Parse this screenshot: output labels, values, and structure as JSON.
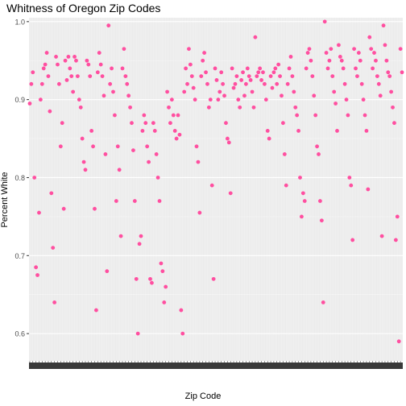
{
  "chart_data": {
    "type": "scatter",
    "title": "Whitness of Oregon Zip Codes",
    "xlabel": "Zip Code",
    "ylabel": "Percent White",
    "ylim": [
      0.565,
      1.005
    ],
    "yticks": [
      "0.6",
      "0.7",
      "0.8",
      "0.9",
      "1.0"
    ],
    "ytick_values": [
      0.6,
      0.7,
      0.8,
      0.9,
      1.0
    ],
    "x_type": "categorical (unreadable, overplotted zip code labels)",
    "grid": true,
    "colors": {
      "point": "#FF4FA0",
      "panel": "#EBEBEB",
      "grid": "#FFFFFF",
      "axis_text": "#4D4D4D"
    },
    "series": [
      {
        "values": [
          0.895,
          0.92,
          0.935,
          0.8,
          0.685,
          0.675,
          0.755,
          0.9,
          0.92,
          0.94,
          0.945,
          0.96,
          0.93,
          0.885,
          0.78,
          0.71,
          0.64,
          0.955,
          0.945,
          0.92,
          0.84,
          0.87,
          0.76,
          0.95,
          0.925,
          0.955,
          0.94,
          0.93,
          0.91,
          0.955,
          0.95,
          0.93,
          0.9,
          0.89,
          0.85,
          0.82,
          0.81,
          0.95,
          0.945,
          0.93,
          0.86,
          0.84,
          0.76,
          0.63,
          0.935,
          0.96,
          0.945,
          0.93,
          0.905,
          0.83,
          0.68,
          0.995,
          0.92,
          0.94,
          0.91,
          0.88,
          0.77,
          0.84,
          0.81,
          0.725,
          0.94,
          0.965,
          0.93,
          0.92,
          0.905,
          0.89,
          0.87,
          0.835,
          0.77,
          0.67,
          0.6,
          0.715,
          0.725,
          0.86,
          0.88,
          0.87,
          0.84,
          0.82,
          0.67,
          0.665,
          0.87,
          0.86,
          0.83,
          0.8,
          0.77,
          0.69,
          0.68,
          0.64,
          0.66,
          0.91,
          0.89,
          0.87,
          0.9,
          0.88,
          0.86,
          0.85,
          0.88,
          0.855,
          0.63,
          0.6,
          0.91,
          0.94,
          0.92,
          0.965,
          0.945,
          0.93,
          0.915,
          0.9,
          0.84,
          0.82,
          0.755,
          0.93,
          0.95,
          0.96,
          0.935,
          0.92,
          0.89,
          0.9,
          0.79,
          0.67,
          0.94,
          0.925,
          0.9,
          0.91,
          0.935,
          0.92,
          0.905,
          0.87,
          0.85,
          0.845,
          0.78,
          0.94,
          0.915,
          0.92,
          0.93,
          0.9,
          0.89,
          0.925,
          0.935,
          0.905,
          0.92,
          0.94,
          0.93,
          0.925,
          0.91,
          0.89,
          0.98,
          0.93,
          0.935,
          0.94,
          0.925,
          0.935,
          0.92,
          0.9,
          0.86,
          0.85,
          0.93,
          0.915,
          0.935,
          0.94,
          0.92,
          0.945,
          0.93,
          0.905,
          0.87,
          0.83,
          0.79,
          0.92,
          0.94,
          0.955,
          0.93,
          0.91,
          0.89,
          0.88,
          0.86,
          0.8,
          0.75,
          0.78,
          0.77,
          0.94,
          0.96,
          0.965,
          0.95,
          0.93,
          0.905,
          0.88,
          0.84,
          0.83,
          0.77,
          0.745,
          0.64,
          1.0,
          0.96,
          0.94,
          0.95,
          0.965,
          0.93,
          0.91,
          0.895,
          0.86,
          0.97,
          0.955,
          0.95,
          0.94,
          0.92,
          0.9,
          0.88,
          0.8,
          0.79,
          0.72,
          0.965,
          0.94,
          0.93,
          0.96,
          0.95,
          0.92,
          0.9,
          0.88,
          0.86,
          0.785,
          0.98,
          0.965,
          0.94,
          0.96,
          0.95,
          0.93,
          0.92,
          0.905,
          0.725,
          0.995,
          0.97,
          0.95,
          0.935,
          0.93,
          0.91,
          0.89,
          0.87,
          0.72,
          0.75,
          0.59,
          0.965,
          0.935
        ]
      }
    ]
  }
}
